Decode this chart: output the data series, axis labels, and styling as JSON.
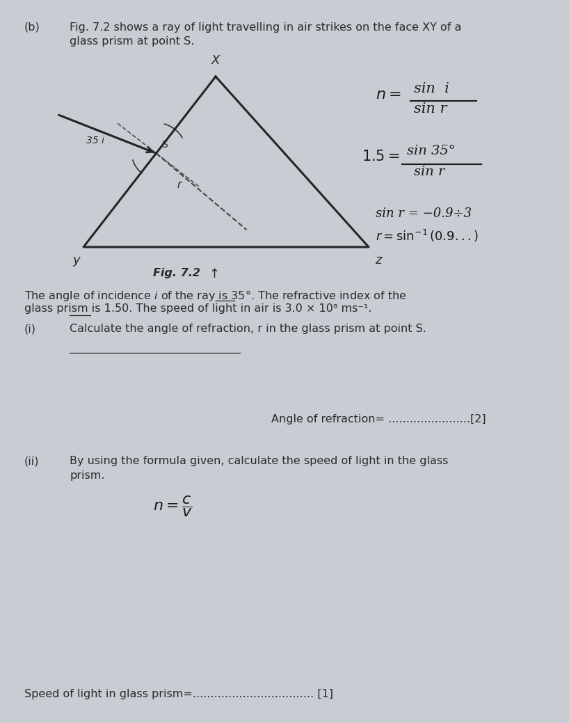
{
  "bg_color": "#c8cdd4",
  "text_color": "#2a2a2a",
  "title_b": "(b)",
  "desc_line1": "Fig. 7.2 shows a ray of light travelling in air strikes on the face XY of a",
  "desc_line2": "glass prism at point S.",
  "fig_label": "Fig. 7.2",
  "question_i_label": "(i)",
  "question_i_text": "Calculate the angle of refraction, r in the glass prism at point S.",
  "answer_line_i": "Angle of refraction= .......................[2]",
  "question_ii_label": "(ii)",
  "question_ii_line1": "By using the formula given, calculate the speed of light in the glass",
  "question_ii_line2": "prism.",
  "answer_line_ii": "Speed of light in glass prism=.................................. [1]",
  "body_line1": "The angle of incidence i of the ray is 35°. The refractive index of the",
  "body_line2": "glass prism is 1.50. The speed of light in air is 3.0 × 10⁸ ms⁻¹."
}
